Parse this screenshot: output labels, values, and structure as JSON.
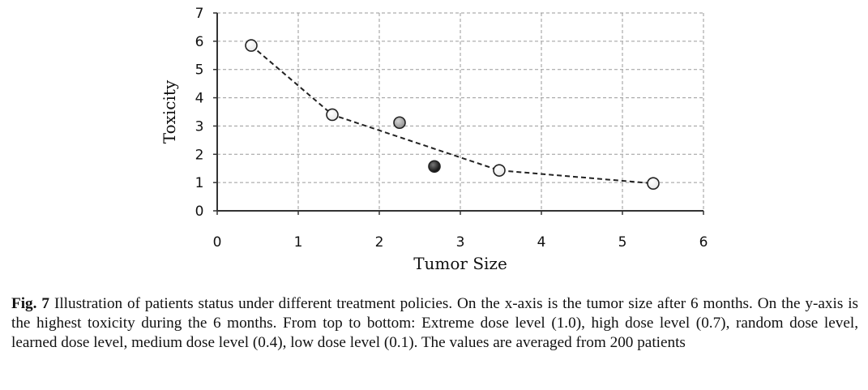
{
  "chart_data": {
    "type": "scatter",
    "xlabel": "Tumor Size",
    "ylabel": "Toxicity",
    "xlim": [
      0,
      6
    ],
    "ylim": [
      0,
      7
    ],
    "xticks": [
      0,
      1,
      2,
      3,
      4,
      5,
      6
    ],
    "yticks": [
      0,
      1,
      2,
      3,
      4,
      5,
      6,
      7
    ],
    "grid": true,
    "series": [
      {
        "style": "dashed-line-open-markers",
        "color": "#222222",
        "marker_fill": "#ffffff",
        "points": [
          {
            "x": 0.42,
            "y": 5.85
          },
          {
            "x": 1.42,
            "y": 3.4
          },
          {
            "x": 3.48,
            "y": 1.43
          },
          {
            "x": 5.38,
            "y": 0.97
          }
        ]
      },
      {
        "style": "marker-only",
        "marker_fill": "#a8a8a8",
        "points": [
          {
            "x": 2.25,
            "y": 3.12
          }
        ]
      },
      {
        "style": "marker-only",
        "marker_fill": "#111111",
        "points": [
          {
            "x": 2.68,
            "y": 1.57
          }
        ]
      }
    ]
  },
  "caption": {
    "label": "Fig. 7",
    "text": "Illustration of patients status under different treatment policies. On the x-axis is the tumor size after 6 months. On the y-axis is the highest toxicity during the 6 months. From top to bottom: Extreme dose level (1.0), high dose level (0.7), random dose level, learned dose level, medium dose level (0.4), low dose level (0.1). The values are averaged from 200 patients"
  }
}
